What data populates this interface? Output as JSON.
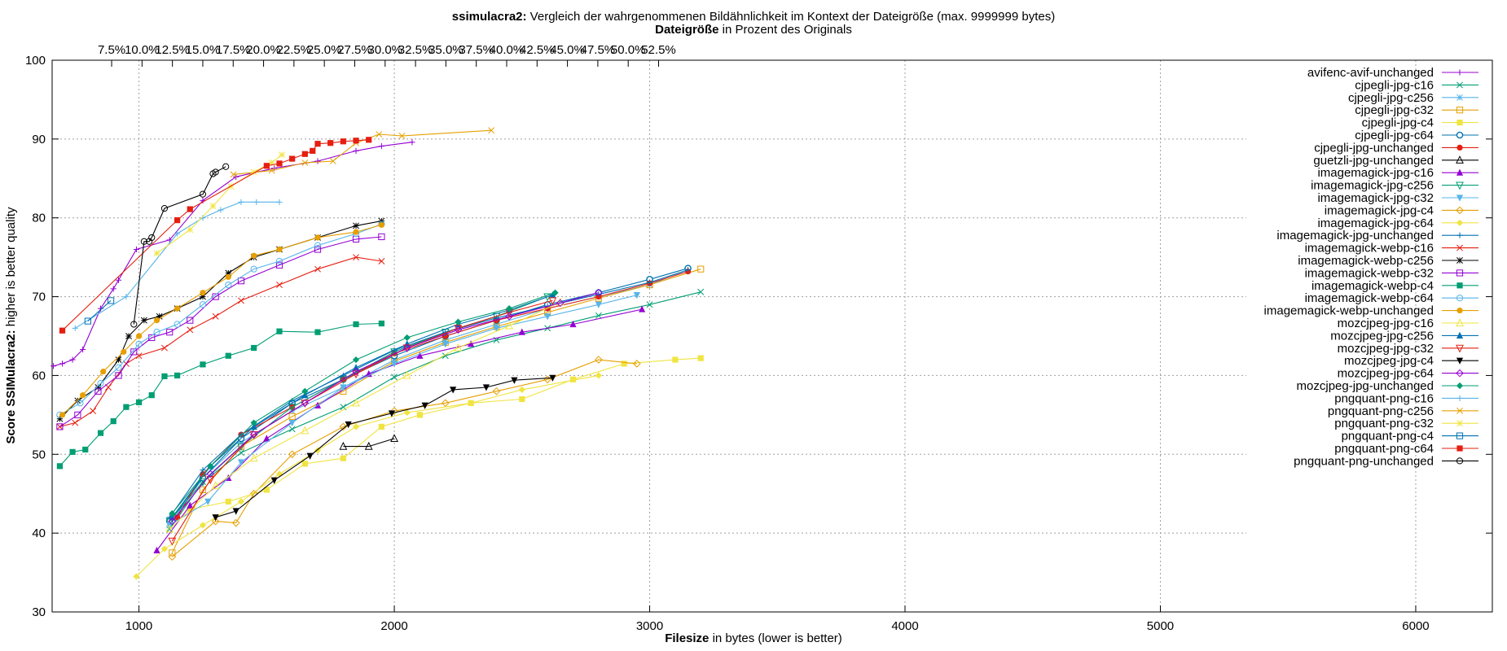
{
  "title": {
    "bold": "ssimulacra2:",
    "rest": " Vergleich der wahrgenommenen Bildähnlichkeit im Kontext der Dateigröße (max. 9999999 bytes)"
  },
  "x2label": {
    "bold": "Dateigröße",
    "rest": " in Prozent des Originals"
  },
  "xlabel": {
    "bold": "Filesize",
    "rest": " in bytes (lower is better)"
  },
  "ylabel": {
    "bold": "Score SSIMulacra2:",
    "rest": " higher is better quality"
  },
  "chart_data": {
    "type": "line",
    "title": "ssimulacra2: Vergleich der wahrgenommenen Bildähnlichkeit im Kontext der Dateigröße (max. 9999999 bytes)",
    "xlabel": "Filesize in bytes (lower is better)",
    "ylabel": "Score SSIMulacra2: higher is better quality",
    "x2label": "Dateigröße in Prozent des Originals",
    "xlim": [
      660,
      6300
    ],
    "ylim": [
      30,
      100
    ],
    "xticks": [
      1000,
      2000,
      3000,
      4000,
      5000,
      6000
    ],
    "yticks": [
      30,
      40,
      50,
      60,
      70,
      80,
      90,
      100
    ],
    "x2ticks": [
      "7.5%",
      "10.0%",
      "12.5%",
      "15.0%",
      "17.5%",
      "20.0%",
      "22.5%",
      "25.0%",
      "27.5%",
      "30.0%",
      "32.5%",
      "35.0%",
      "37.5%",
      "40.0%",
      "42.5%",
      "45.0%",
      "47.5%",
      "50.0%",
      "52.5%"
    ],
    "x2tick_bytes": [
      893,
      1012,
      1131,
      1250,
      1369,
      1488,
      1607,
      1726,
      1845,
      1964,
      2083,
      2202,
      2321,
      2440,
      2559,
      2678,
      2797,
      2916,
      3035
    ],
    "grid": true,
    "legend_position": "right",
    "series": [
      {
        "name": "avifenc-avif-unchanged",
        "color": "#9400d3",
        "marker": "plus",
        "x": [
          665,
          700,
          740,
          780,
          850,
          900,
          920,
          990,
          1120,
          1250,
          1380,
          1530,
          1700,
          1850,
          1950,
          2070
        ],
        "y": [
          61.2,
          61.5,
          62,
          63.3,
          68.5,
          71,
          72.1,
          76,
          77.2,
          82.2,
          85.2,
          86.3,
          87.2,
          88.5,
          89.1,
          89.6
        ]
      },
      {
        "name": "cjpegli-jpg-c16",
        "color": "#009e73",
        "marker": "cross",
        "x": [
          1120,
          1250,
          1400,
          1600,
          1800,
          2000,
          2200,
          2400,
          2600,
          2800,
          3000,
          3200
        ],
        "y": [
          40.5,
          46.5,
          50.2,
          53.2,
          56,
          59.8,
          62.5,
          64.5,
          66,
          67.6,
          69,
          70.6
        ]
      },
      {
        "name": "cjpegli-jpg-c256",
        "color": "#56b4e9",
        "marker": "star",
        "x": [
          1120,
          1250,
          1400,
          1600,
          1800,
          2000,
          2200,
          2400,
          2600,
          2800,
          3000,
          3150
        ],
        "y": [
          41,
          47,
          51.5,
          55.5,
          58.5,
          62,
          64.5,
          66.5,
          68.5,
          70,
          71.5,
          73.4
        ]
      },
      {
        "name": "cjpegli-jpg-c32",
        "color": "#e69f00",
        "marker": "square-open",
        "x": [
          1130,
          1250,
          1400,
          1600,
          1800,
          2000,
          2200,
          2400,
          2600,
          2800,
          3000,
          3200
        ],
        "y": [
          37.5,
          45.5,
          51,
          54.8,
          58,
          61.8,
          64.2,
          66.2,
          68,
          69.8,
          71.5,
          73.5
        ]
      },
      {
        "name": "cjpegli-jpg-c4",
        "color": "#f0e442",
        "marker": "square",
        "x": [
          1200,
          1350,
          1500,
          1650,
          1800,
          1950,
          2100,
          2300,
          2500,
          2700,
          2900,
          3100,
          3200
        ],
        "y": [
          43,
          44,
          45.5,
          48.8,
          49.5,
          53.5,
          55,
          56.5,
          57,
          59.5,
          61.5,
          62,
          62.2
        ]
      },
      {
        "name": "cjpegli-jpg-c64",
        "color": "#0072b2",
        "marker": "circle-dot",
        "x": [
          1120,
          1250,
          1400,
          1600,
          1800,
          2000,
          2200,
          2400,
          2600,
          2800,
          3000,
          3150
        ],
        "y": [
          41.5,
          47,
          52,
          56.5,
          59.5,
          62.5,
          65,
          67,
          69,
          70.5,
          72.2,
          73.6
        ]
      },
      {
        "name": "cjpegli-jpg-unchanged",
        "color": "#e51e10",
        "marker": "circle-fill",
        "x": [
          1150,
          1250,
          1400,
          1600,
          1800,
          2000,
          2200,
          2400,
          2600,
          2800,
          3000,
          3150
        ],
        "y": [
          42,
          47.5,
          52.5,
          56,
          59.5,
          62.8,
          65,
          67,
          68.5,
          70,
          71.7,
          73.2
        ]
      },
      {
        "name": "guetzli-jpg-unchanged",
        "color": "#000000",
        "marker": "triangle-open",
        "x": [
          1800,
          1900,
          2000
        ],
        "y": [
          51,
          51,
          52
        ]
      },
      {
        "name": "imagemagick-jpg-c16",
        "color": "#9400d3",
        "marker": "triangle-fill",
        "x": [
          1070,
          1200,
          1350,
          1500,
          1700,
          1900,
          2100,
          2300,
          2500,
          2700,
          2970
        ],
        "y": [
          37.8,
          43.5,
          47,
          52,
          56.2,
          60.2,
          62.5,
          64,
          65.5,
          66.5,
          68.4
        ]
      },
      {
        "name": "imagemagick-jpg-c256",
        "color": "#009e73",
        "marker": "triangle-down-open",
        "x": [
          1120,
          1250,
          1400,
          1600,
          1800,
          2000,
          2200,
          2400,
          2600
        ],
        "y": [
          41.5,
          46.5,
          51,
          56,
          59.5,
          63,
          65.5,
          67.5,
          70
        ]
      },
      {
        "name": "imagemagick-jpg-c32",
        "color": "#56b4e9",
        "marker": "triangle-down-fill",
        "x": [
          1120,
          1270,
          1400,
          1600,
          1800,
          2000,
          2200,
          2400,
          2600,
          2800,
          2950
        ],
        "y": [
          41,
          44,
          49,
          54,
          58.5,
          61.5,
          64,
          66,
          67.5,
          69,
          70.2
        ]
      },
      {
        "name": "imagemagick-jpg-c4",
        "color": "#e69f00",
        "marker": "diamond-open",
        "x": [
          1130,
          1300,
          1380,
          1450,
          1600,
          1800,
          2000,
          2200,
          2400,
          2600,
          2800,
          2950
        ],
        "y": [
          37,
          41.5,
          41.3,
          45,
          50,
          53.5,
          55.5,
          56.5,
          58,
          59.5,
          62,
          61.5
        ]
      },
      {
        "name": "imagemagick-jpg-c64",
        "color": "#f0e442",
        "marker": "diamond-fill",
        "x": [
          990,
          1100,
          1250,
          1400,
          1550,
          1700,
          1850,
          2050,
          2300,
          2500,
          2800
        ],
        "y": [
          34.5,
          38,
          41,
          44,
          47.5,
          50.5,
          53.5,
          55.3,
          56.5,
          58.2,
          60
        ]
      },
      {
        "name": "imagemagick-jpg-unchanged",
        "color": "#0072b2",
        "marker": "plus",
        "x": [
          1120,
          1250,
          1400,
          1600,
          1800,
          2000,
          2200,
          2400,
          2600,
          2800,
          3000,
          3150
        ],
        "y": [
          42,
          48,
          52.5,
          56.8,
          60,
          63.2,
          65.5,
          67.3,
          68.8,
          70.3,
          71.8,
          73.4
        ]
      },
      {
        "name": "imagemagick-webp-c16",
        "color": "#e51e10",
        "marker": "cross",
        "x": [
          690,
          750,
          820,
          880,
          950,
          1000,
          1100,
          1200,
          1300,
          1400,
          1550,
          1700,
          1850,
          1950
        ],
        "y": [
          53.5,
          54,
          55.5,
          58.5,
          61.5,
          62.5,
          63.5,
          65.8,
          67.5,
          69.5,
          71.5,
          73.5,
          75,
          74.5
        ]
      },
      {
        "name": "imagemagick-webp-c256",
        "color": "#000000",
        "marker": "star",
        "x": [
          690,
          760,
          840,
          920,
          960,
          1020,
          1080,
          1150,
          1250,
          1350,
          1450,
          1550,
          1700,
          1850,
          1950
        ],
        "y": [
          54.5,
          56.8,
          58.5,
          62,
          65,
          67,
          67.5,
          68.5,
          70,
          73,
          75,
          76,
          77.5,
          79,
          79.6
        ]
      },
      {
        "name": "imagemagick-webp-c32",
        "color": "#9400d3",
        "marker": "square-open",
        "x": [
          690,
          760,
          840,
          920,
          980,
          1050,
          1120,
          1200,
          1300,
          1400,
          1550,
          1700,
          1850,
          1950
        ],
        "y": [
          53.5,
          55,
          58,
          60,
          63,
          64.8,
          65.5,
          67,
          70,
          72,
          74,
          76,
          77.3,
          77.6
        ]
      },
      {
        "name": "imagemagick-webp-c4",
        "color": "#009e73",
        "marker": "square",
        "x": [
          690,
          740,
          790,
          850,
          900,
          950,
          1000,
          1050,
          1100,
          1150,
          1250,
          1350,
          1450,
          1550,
          1700,
          1850,
          1950
        ],
        "y": [
          48.5,
          50.3,
          50.6,
          52.7,
          54.2,
          56,
          56.6,
          57.5,
          59.9,
          60,
          61.4,
          62.5,
          63.5,
          65.6,
          65.5,
          66.5,
          66.6
        ]
      },
      {
        "name": "imagemagick-webp-c64",
        "color": "#56b4e9",
        "marker": "circle-open",
        "x": [
          690,
          770,
          850,
          920,
          1000,
          1070,
          1150,
          1250,
          1350,
          1450,
          1550,
          1700,
          1850,
          1950
        ],
        "y": [
          55,
          56.5,
          59,
          61,
          64,
          65.5,
          66.5,
          69,
          71.5,
          73.5,
          74.5,
          76.5,
          78,
          79.2
        ]
      },
      {
        "name": "imagemagick-webp-unchanged",
        "color": "#e69f00",
        "marker": "circle-fill",
        "x": [
          700,
          780,
          860,
          940,
          1000,
          1070,
          1150,
          1250,
          1350,
          1450,
          1550,
          1700,
          1850,
          1950
        ],
        "y": [
          55,
          57.5,
          60.5,
          63,
          65,
          67,
          68.5,
          70.5,
          72.5,
          75.2,
          76,
          77.5,
          78.2,
          79.1
        ]
      },
      {
        "name": "mozcjpeg-jpg-c16",
        "color": "#f0e442",
        "marker": "triangle-open",
        "x": [
          1120,
          1300,
          1450,
          1650,
          1850,
          2050,
          2250,
          2450,
          2650
        ],
        "y": [
          40.5,
          46,
          49.5,
          53,
          56.5,
          60,
          63.5,
          66.3,
          69.3
        ]
      },
      {
        "name": "mozcjpeg-jpg-c256",
        "color": "#0072b2",
        "marker": "triangle-fill",
        "x": [
          1130,
          1280,
          1450,
          1650,
          1850,
          2050,
          2250,
          2450,
          2620
        ],
        "y": [
          42,
          48.5,
          53.5,
          57.5,
          61,
          64,
          66.5,
          68.3,
          70.2
        ]
      },
      {
        "name": "mozcjpeg-jpg-c32",
        "color": "#e51e10",
        "marker": "triangle-down-open",
        "x": [
          1130,
          1280,
          1450,
          1650,
          1850,
          2050,
          2250,
          2450,
          2620
        ],
        "y": [
          39,
          46.8,
          52.5,
          56.5,
          60.2,
          63.5,
          66,
          68,
          69.5
        ]
      },
      {
        "name": "mozcjpeg-jpg-c4",
        "color": "#000000",
        "marker": "triangle-down-fill",
        "x": [
          1300,
          1380,
          1530,
          1670,
          1820,
          1990,
          2120,
          2230,
          2360,
          2470,
          2620
        ],
        "y": [
          42,
          42.8,
          46.7,
          49.8,
          53.8,
          55.2,
          56.2,
          58.2,
          58.5,
          59.4,
          59.7
        ]
      },
      {
        "name": "mozcjpeg-jpg-c64",
        "color": "#9400d3",
        "marker": "diamond-open",
        "x": [
          1130,
          1280,
          1450,
          1650,
          1850,
          2050,
          2250,
          2450,
          2650,
          2800
        ],
        "y": [
          41.5,
          47.5,
          52.5,
          56.5,
          60.5,
          63.5,
          65.8,
          67.5,
          69.2,
          70.5
        ]
      },
      {
        "name": "mozcjpeg-jpg-unchanged",
        "color": "#009e73",
        "marker": "diamond-fill",
        "x": [
          1130,
          1280,
          1450,
          1650,
          1850,
          2050,
          2250,
          2450,
          2630
        ],
        "y": [
          42.5,
          48.5,
          54,
          58,
          62,
          64.8,
          66.8,
          68.5,
          70.5
        ]
      },
      {
        "name": "pngquant-png-c16",
        "color": "#56b4e9",
        "marker": "plus",
        "x": [
          750,
          950,
          1150,
          1250,
          1320,
          1400,
          1460,
          1550
        ],
        "y": [
          66,
          70,
          78,
          80,
          81,
          82,
          82,
          82
        ]
      },
      {
        "name": "pngquant-png-c256",
        "color": "#e69f00",
        "marker": "cross",
        "x": [
          1370,
          1520,
          1650,
          1760,
          1850,
          1940,
          2030,
          2380
        ],
        "y": [
          85.5,
          86,
          87,
          87.2,
          89.5,
          90.6,
          90.4,
          91.1
        ]
      },
      {
        "name": "pngquant-png-c32",
        "color": "#f0e442",
        "marker": "star",
        "x": [
          1070,
          1200,
          1290,
          1360,
          1450,
          1520,
          1560
        ],
        "y": [
          75.5,
          78.5,
          81.5,
          84,
          85.8,
          87,
          88
        ]
      },
      {
        "name": "pngquant-png-c4",
        "color": "#0072b2",
        "marker": "square-open",
        "x": [
          800,
          890
        ],
        "y": [
          66.9,
          69.5
        ]
      },
      {
        "name": "pngquant-png-c64",
        "color": "#e51e10",
        "marker": "square",
        "x": [
          700,
          1150,
          1200,
          1500,
          1550,
          1600,
          1650,
          1680,
          1700,
          1750,
          1800,
          1850,
          1900
        ],
        "y": [
          65.7,
          79.7,
          81.1,
          86.6,
          86.9,
          87.5,
          88.1,
          88.5,
          89.4,
          89.5,
          89.7,
          89.8,
          89.9
        ]
      },
      {
        "name": "pngquant-png-unchanged",
        "color": "#000000",
        "marker": "circle-open",
        "x": [
          980,
          1020,
          1040,
          1050,
          1100,
          1250,
          1290,
          1300,
          1340
        ],
        "y": [
          66.5,
          77,
          77,
          77.5,
          81.2,
          83,
          85.6,
          85.8,
          86.5
        ]
      }
    ]
  }
}
